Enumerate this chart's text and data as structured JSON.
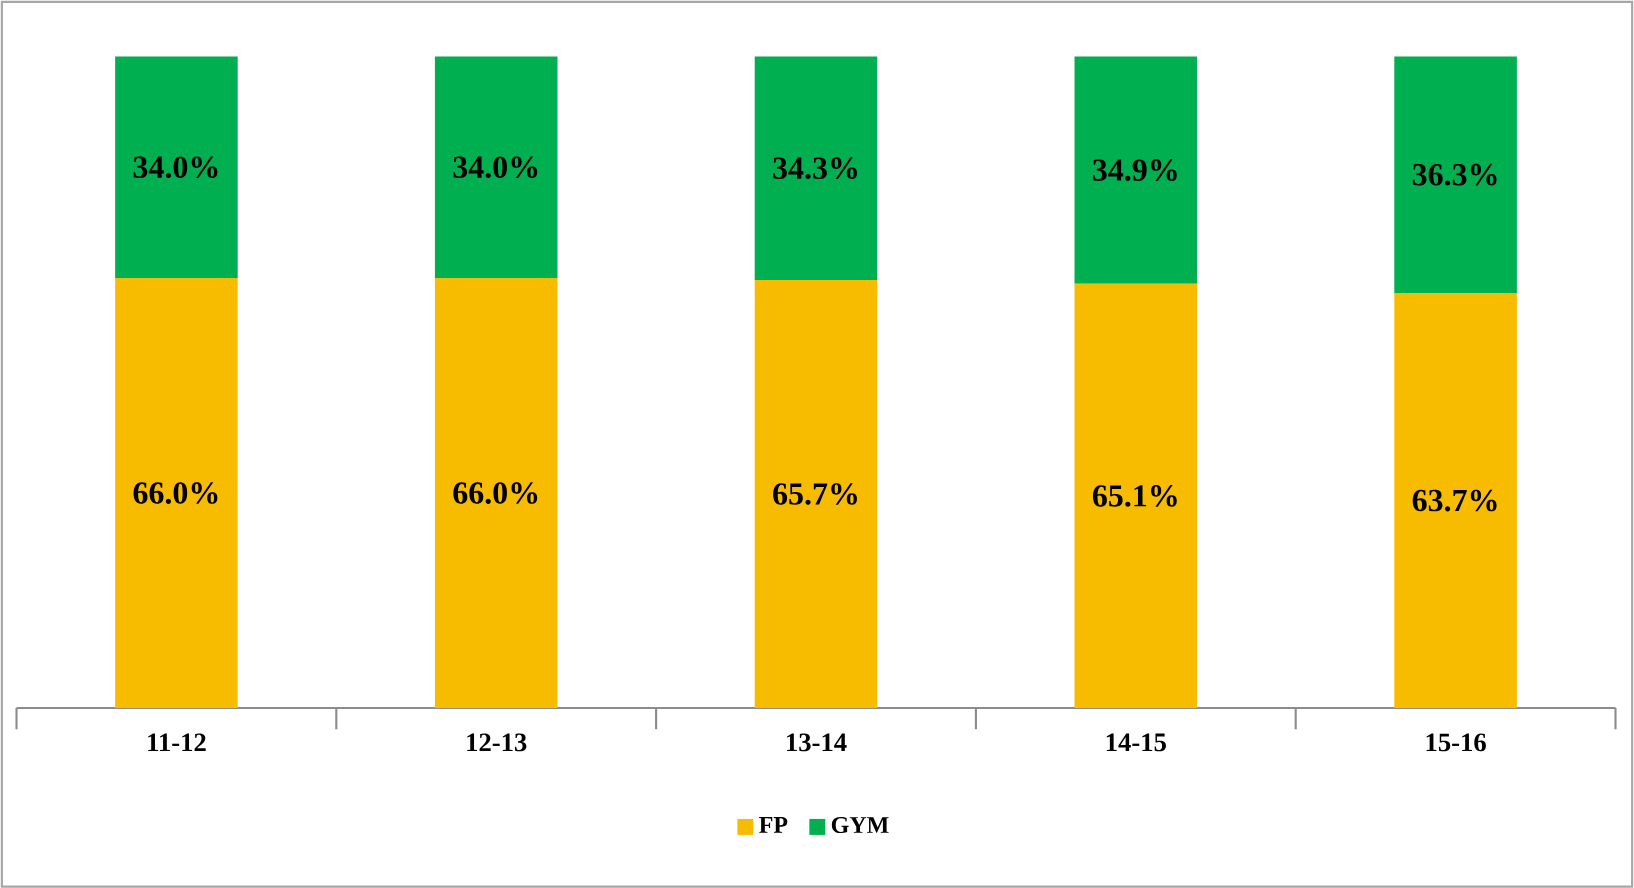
{
  "chart_data": {
    "type": "bar",
    "stacked": true,
    "categories": [
      "11-12",
      "12-13",
      "13-14",
      "14-15",
      "15-16"
    ],
    "series": [
      {
        "name": "FP",
        "color": "#f7bc00",
        "values": [
          66.0,
          66.0,
          65.7,
          65.1,
          63.7
        ],
        "value_labels": [
          "66.0%",
          "66.0%",
          "65.7%",
          "65.1%",
          "63.7%"
        ]
      },
      {
        "name": "GYM",
        "color": "#00b050",
        "values": [
          34.0,
          34.0,
          34.3,
          34.9,
          36.3
        ],
        "value_labels": [
          "34.0%",
          "34.0%",
          "34.3%",
          "34.9%",
          "36.3%"
        ]
      }
    ],
    "tick_labels": "x",
    "legend": "bottom",
    "grid": false
  }
}
